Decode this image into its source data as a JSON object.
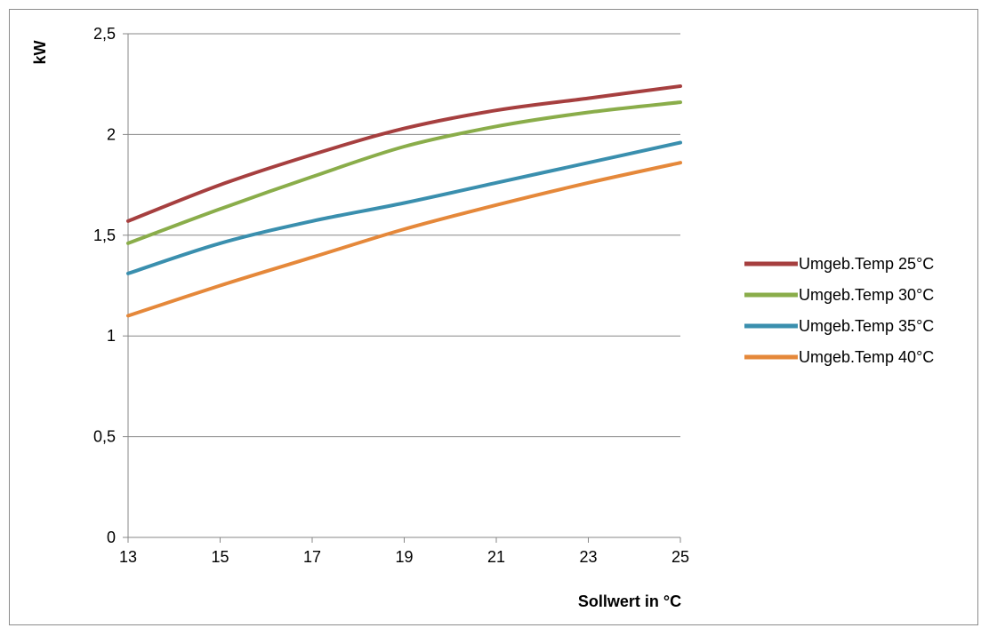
{
  "chart_data": {
    "type": "line",
    "xlabel": "Sollwert in °C",
    "ylabel": "kW",
    "xlim": [
      13,
      25
    ],
    "ylim": [
      0,
      2.5
    ],
    "x_ticks": [
      "13",
      "15",
      "17",
      "19",
      "21",
      "23",
      "25"
    ],
    "y_ticks": [
      "0",
      "0,5",
      "1",
      "1,5",
      "2",
      "2,5"
    ],
    "grid": "horizontal",
    "legend_position": "right",
    "x": [
      13,
      15,
      17,
      19,
      21,
      23,
      25
    ],
    "series": [
      {
        "name": "Umgeb.Temp 25°C",
        "color": "#A63F3F",
        "values": [
          1.57,
          1.75,
          1.9,
          2.03,
          2.12,
          2.18,
          2.24
        ]
      },
      {
        "name": "Umgeb.Temp 30°C",
        "color": "#8AAD4A",
        "values": [
          1.46,
          1.63,
          1.79,
          1.94,
          2.04,
          2.11,
          2.16
        ]
      },
      {
        "name": "Umgeb.Temp 35°C",
        "color": "#3A8FAE",
        "values": [
          1.31,
          1.46,
          1.57,
          1.66,
          1.76,
          1.86,
          1.96
        ]
      },
      {
        "name": "Umgeb.Temp 40°C",
        "color": "#E5883A",
        "values": [
          1.1,
          1.25,
          1.39,
          1.53,
          1.65,
          1.76,
          1.86
        ]
      }
    ]
  }
}
